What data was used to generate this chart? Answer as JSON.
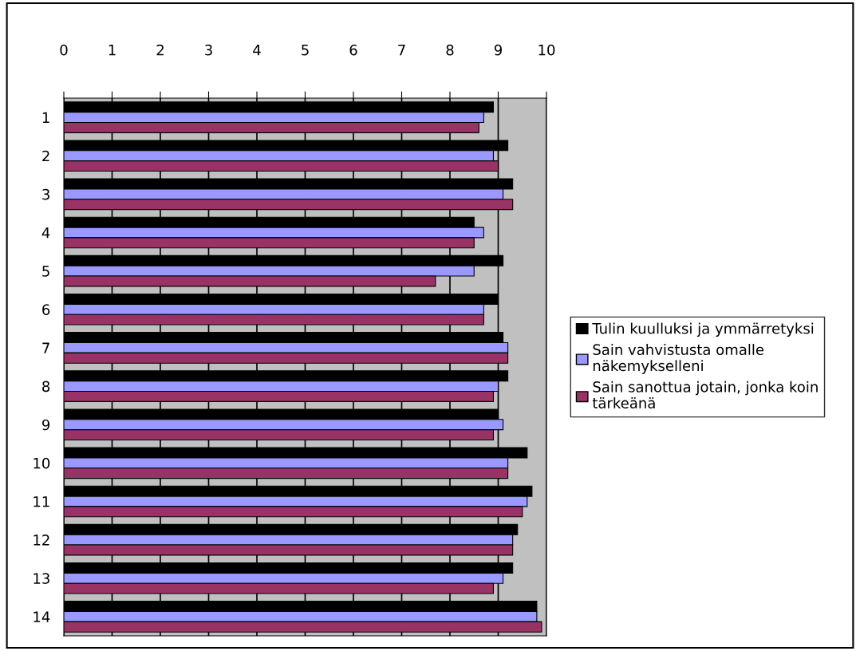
{
  "chart_data": {
    "type": "bar",
    "orientation": "horizontal",
    "categories": [
      "1",
      "2",
      "3",
      "4",
      "5",
      "6",
      "7",
      "8",
      "9",
      "10",
      "11",
      "12",
      "13",
      "14"
    ],
    "series": [
      {
        "name": "Tulin kuulluksi ja ymmärretyksi",
        "color": "#000000",
        "values": [
          8.9,
          9.2,
          9.3,
          8.5,
          9.1,
          9.0,
          9.1,
          9.2,
          9.0,
          9.6,
          9.7,
          9.4,
          9.3,
          9.8
        ]
      },
      {
        "name": "Sain vahvistusta omalle näkemykselleni",
        "color": "#9999ff",
        "values": [
          8.7,
          8.9,
          9.1,
          8.7,
          8.5,
          8.7,
          9.2,
          9.0,
          9.1,
          9.2,
          9.6,
          9.3,
          9.1,
          9.8
        ]
      },
      {
        "name": "Sain sanottua jotain, jonka koin tärkeänä",
        "color": "#993366",
        "values": [
          8.6,
          9.0,
          9.3,
          8.5,
          7.7,
          8.7,
          9.2,
          8.9,
          8.9,
          9.2,
          9.5,
          9.3,
          8.9,
          9.9
        ]
      }
    ],
    "xlim": [
      0,
      10
    ],
    "xticks": [
      0,
      1,
      2,
      3,
      4,
      5,
      6,
      7,
      8,
      9,
      10
    ],
    "grid": "x",
    "legend": "right"
  }
}
